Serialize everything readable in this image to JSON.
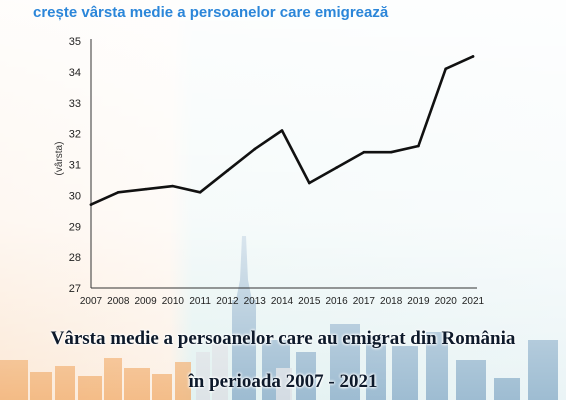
{
  "headline": "crește vârsta medie a persoanelor care emigrează",
  "caption_line1": "Vârsta medie a persoanelor care au emigrat din România",
  "caption_line2": "în perioada 2007 - 2021",
  "colors": {
    "headline": "#2b86d9",
    "line": "#111111",
    "axis": "#333333",
    "skyline_orange": "#f0a35a",
    "skyline_blue": "#7fa6c4"
  },
  "chart_data": {
    "type": "line",
    "ylabel": "(vârsta)",
    "ylim": [
      27,
      35
    ],
    "yticks": [
      27,
      28,
      29,
      30,
      31,
      32,
      33,
      34,
      35
    ],
    "x": [
      "2007",
      "2008",
      "2009",
      "2010",
      "2011",
      "2012",
      "2013",
      "2014",
      "2015",
      "2016",
      "2017",
      "2018",
      "2019",
      "2020",
      "2021"
    ],
    "series": [
      {
        "values": [
          29.7,
          30.1,
          30.2,
          30.3,
          30.1,
          30.8,
          31.5,
          32.1,
          30.4,
          30.9,
          31.4,
          31.4,
          31.6,
          34.1,
          34.5
        ]
      }
    ],
    "grid": false,
    "legend": "none"
  }
}
